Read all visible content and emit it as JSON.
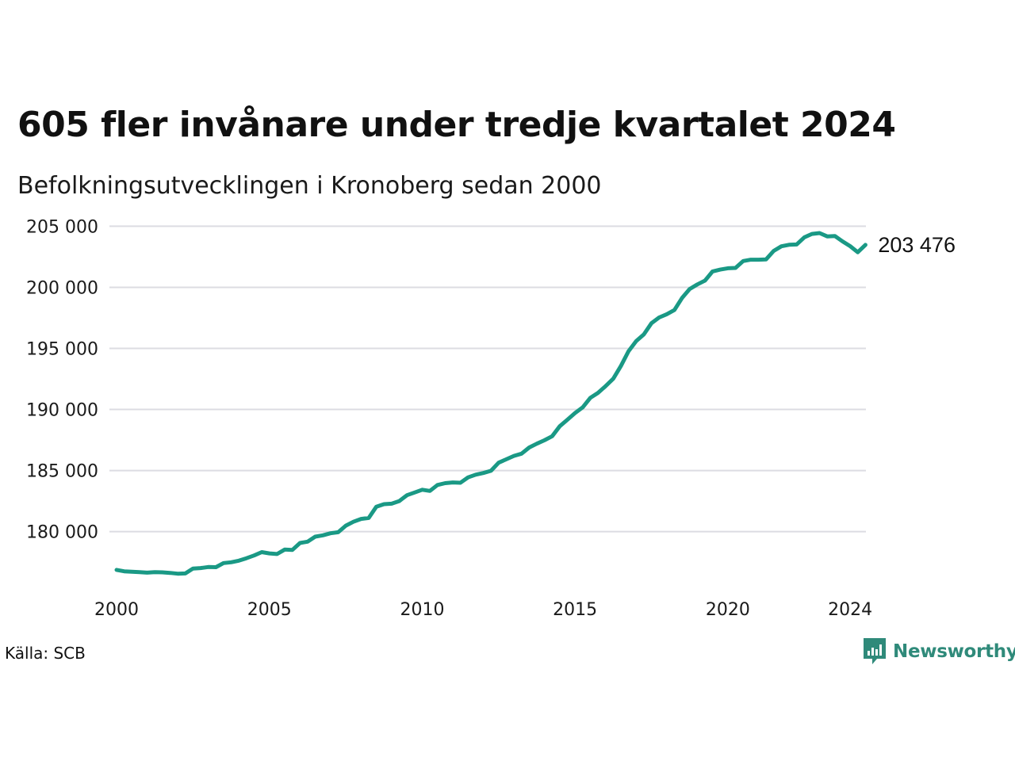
{
  "chart_data": {
    "type": "line",
    "title": "605 fler invånare under tredje kvartalet 2024",
    "subtitle": "Befolkningsutvecklingen i Kronoberg sedan 2000",
    "source": "Källa: SCB",
    "brand": "Newsworthy",
    "line_color": "#1a9985",
    "grid": true,
    "xlim": [
      2000,
      2024.75
    ],
    "ylim": [
      175500,
      206000
    ],
    "x_ticks": [
      {
        "value": 2000,
        "label": "2000"
      },
      {
        "value": 2005,
        "label": "2005"
      },
      {
        "value": 2010,
        "label": "2010"
      },
      {
        "value": 2015,
        "label": "2015"
      },
      {
        "value": 2020,
        "label": "2020"
      },
      {
        "value": 2024,
        "label": "2024"
      }
    ],
    "y_ticks": [
      {
        "value": 180000,
        "label": "180 000"
      },
      {
        "value": 185000,
        "label": "185 000"
      },
      {
        "value": 190000,
        "label": "190 000"
      },
      {
        "value": 195000,
        "label": "195 000"
      },
      {
        "value": 200000,
        "label": "200 000"
      },
      {
        "value": 205000,
        "label": "205 000"
      }
    ],
    "end_label": "203 476",
    "series": [
      {
        "x": [
          2000.0,
          2000.25,
          2000.5,
          2000.75,
          2001.0,
          2001.25,
          2001.5,
          2001.75,
          2002.0,
          2002.25,
          2002.5,
          2002.75,
          2003.0,
          2003.25,
          2003.5,
          2003.75,
          2004.0,
          2004.25,
          2004.5,
          2004.75,
          2005.0,
          2005.25,
          2005.5,
          2005.75,
          2006.0,
          2006.25,
          2006.5,
          2006.75,
          2007.0,
          2007.25,
          2007.5,
          2007.75,
          2008.0,
          2008.25,
          2008.5,
          2008.75,
          2009.0,
          2009.25,
          2009.5,
          2009.75,
          2010.0,
          2010.25,
          2010.5,
          2010.75,
          2011.0,
          2011.25,
          2011.5,
          2011.75,
          2012.0,
          2012.25,
          2012.5,
          2012.75,
          2013.0,
          2013.25,
          2013.5,
          2013.75,
          2014.0,
          2014.25,
          2014.5,
          2014.75,
          2015.0,
          2015.25,
          2015.5,
          2015.75,
          2016.0,
          2016.25,
          2016.5,
          2016.75,
          2017.0,
          2017.25,
          2017.5,
          2017.75,
          2018.0,
          2018.25,
          2018.5,
          2018.75,
          2019.0,
          2019.25,
          2019.5,
          2019.75,
          2020.0,
          2020.25,
          2020.5,
          2020.75,
          2021.0,
          2021.25,
          2021.5,
          2021.75,
          2022.0,
          2022.25,
          2022.5,
          2022.75,
          2023.0,
          2023.25,
          2023.5,
          2023.75,
          2024.0,
          2024.25,
          2024.5
        ],
        "values": [
          176870,
          176750,
          176720,
          176690,
          176640,
          176680,
          176670,
          176620,
          176560,
          176580,
          176980,
          177020,
          177100,
          177090,
          177430,
          177490,
          177620,
          177820,
          178050,
          178320,
          178220,
          178170,
          178530,
          178500,
          179070,
          179180,
          179590,
          179700,
          179870,
          179950,
          180490,
          180810,
          181040,
          181120,
          182040,
          182250,
          182290,
          182500,
          182980,
          183200,
          183430,
          183330,
          183820,
          183970,
          184030,
          184000,
          184440,
          184660,
          184800,
          184980,
          185640,
          185920,
          186200,
          186380,
          186890,
          187200,
          187480,
          187810,
          188630,
          189160,
          189710,
          190170,
          190960,
          191360,
          191910,
          192520,
          193560,
          194770,
          195600,
          196140,
          197060,
          197530,
          197800,
          198140,
          199130,
          199860,
          200240,
          200550,
          201300,
          201450,
          201560,
          201590,
          202150,
          202260,
          202260,
          202290,
          202980,
          203360,
          203480,
          203510,
          204090,
          204370,
          204440,
          204170,
          204200,
          203760,
          203370,
          202870,
          203476
        ]
      }
    ]
  }
}
